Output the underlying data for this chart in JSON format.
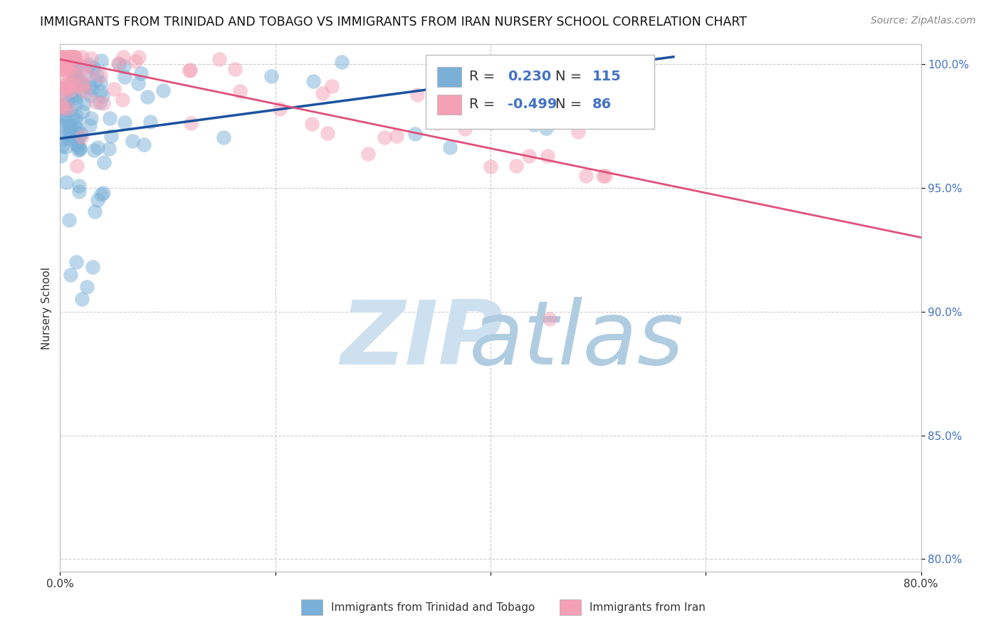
{
  "title": "IMMIGRANTS FROM TRINIDAD AND TOBAGO VS IMMIGRANTS FROM IRAN NURSERY SCHOOL CORRELATION CHART",
  "source": "Source: ZipAtlas.com",
  "ylabel": "Nursery School",
  "xlim": [
    0.0,
    0.8
  ],
  "ylim": [
    0.795,
    1.008
  ],
  "xticks": [
    0.0,
    0.2,
    0.4,
    0.6,
    0.8
  ],
  "xticklabels": [
    "0.0%",
    "",
    "",
    "",
    "80.0%"
  ],
  "yticks": [
    0.8,
    0.85,
    0.9,
    0.95,
    1.0
  ],
  "yticklabels": [
    "80.0%",
    "85.0%",
    "90.0%",
    "95.0%",
    "100.0%"
  ],
  "tt_color": "#7ab0d8",
  "iran_color": "#f4a0b5",
  "tt_R": 0.23,
  "tt_N": 115,
  "iran_R": -0.499,
  "iran_N": 86,
  "tt_line_color": "#1a52a0",
  "iran_line_color": "#e0507a",
  "tt_line_x0": 0.0,
  "tt_line_x1": 0.57,
  "tt_line_y0": 0.97,
  "tt_line_y1": 1.003,
  "iran_line_x0": 0.0,
  "iran_line_x1": 0.8,
  "iran_line_y0": 1.002,
  "iran_line_y1": 0.93,
  "background_color": "#ffffff",
  "grid_color": "#cccccc",
  "title_fontsize": 12.5,
  "axis_label_fontsize": 11,
  "tick_fontsize": 11,
  "legend_fontsize": 14,
  "source_fontsize": 10,
  "yticklabel_color": "#4472c4",
  "text_color": "#333333",
  "watermark_zip_color": "#cce0f0",
  "watermark_atlas_color": "#b0cce0"
}
